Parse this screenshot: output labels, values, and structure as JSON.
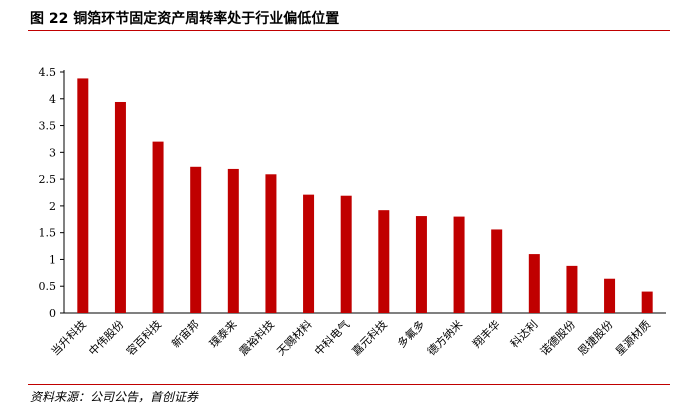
{
  "header": {
    "title": "图 22 铜箔环节固定资产周转率处于行业偏低位置"
  },
  "footer": {
    "source": "资料来源：公司公告，首创证券"
  },
  "colors": {
    "bar": "#c00000",
    "rule": "#c00000",
    "axis": "#000000"
  },
  "chart_data": {
    "type": "bar",
    "title": "",
    "xlabel": "",
    "ylabel": "",
    "ylim": [
      0,
      4.5
    ],
    "yticks": [
      "0",
      "0.5",
      "1",
      "1.5",
      "2",
      "2.5",
      "3",
      "3.5",
      "4",
      "4.5"
    ],
    "grid": false,
    "legend": "none",
    "categories": [
      "当升科技",
      "中伟股份",
      "容百科技",
      "新宙邦",
      "璞泰来",
      "震裕科技",
      "天赐材料",
      "中科电气",
      "嘉元科技",
      "多氟多",
      "德方纳米",
      "翔丰华",
      "科达利",
      "诺德股份",
      "恩捷股份",
      "星源材质"
    ],
    "values": [
      4.38,
      3.94,
      3.2,
      2.73,
      2.69,
      2.59,
      2.21,
      2.19,
      1.92,
      1.81,
      1.8,
      1.56,
      1.1,
      0.88,
      0.64,
      0.4
    ]
  }
}
